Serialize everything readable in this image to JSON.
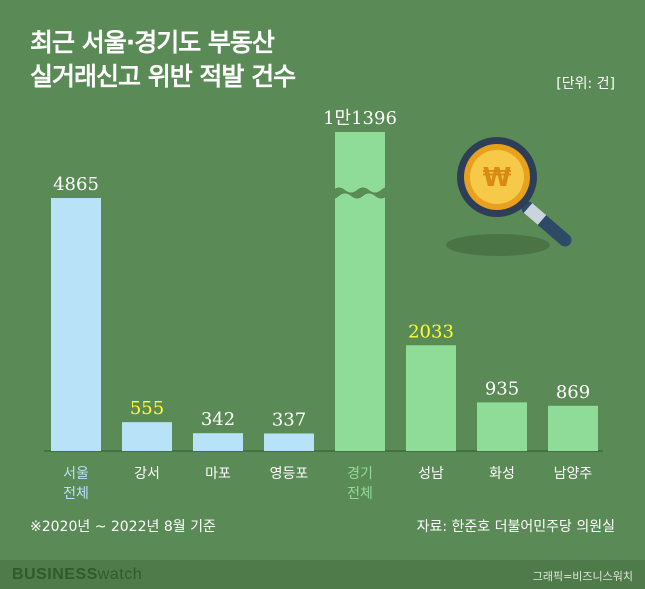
{
  "header": {
    "title_line1": "최근 서울·경기도 부동산",
    "title_line2": "실거래신고 위반 적발 건수",
    "unit": "[단위: 건]"
  },
  "footer": {
    "note": "※2020년 ~ 2022년 8월 기준",
    "source": "자료: 한준호 더불어민주당 의원실",
    "brand_bold": "BUSINESS",
    "brand_light": "watch",
    "credit": "그래픽=비즈니스워치"
  },
  "icon": "magnifier-won-coin-icon",
  "colors": {
    "background": "#5a8a55",
    "seoul_bar": "#b8e2f7",
    "gyeonggi_bar": "#8fdc98",
    "highlight_label": "#ffff33",
    "axis": "#3d6a3a"
  },
  "chart_data": {
    "type": "bar",
    "title": "최근 서울·경기도 부동산 실거래신고 위반 적발 건수",
    "unit": "건",
    "axis_break": true,
    "categories": [
      {
        "line1": "서울",
        "line2": "전체"
      },
      {
        "line1": "강서",
        "line2": ""
      },
      {
        "line1": "마포",
        "line2": ""
      },
      {
        "line1": "영등포",
        "line2": ""
      },
      {
        "line1": "경기",
        "line2": ""
      },
      {
        "line1": "성남",
        "line2": ""
      },
      {
        "line1": "화성",
        "line2": ""
      },
      {
        "line1": "남양주",
        "line2": ""
      }
    ],
    "values": [
      4865,
      555,
      342,
      337,
      11396,
      2033,
      935,
      869
    ],
    "value_labels": [
      "4865",
      "555",
      "342",
      "337",
      "1만1396",
      "2033",
      "935",
      "869"
    ],
    "groups": [
      "서울",
      "서울",
      "서울",
      "서울",
      "경기",
      "경기",
      "경기",
      "경기"
    ],
    "highlighted": [
      false,
      true,
      false,
      false,
      false,
      true,
      false,
      false
    ]
  }
}
